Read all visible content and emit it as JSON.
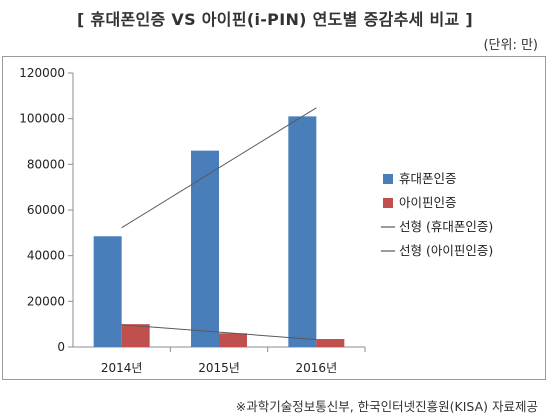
{
  "header": {
    "title": "[ 휴대폰인증 VS 아이핀(i-PIN) 연도별 증감추세 비교 ]",
    "unit": "(단위: 만)"
  },
  "footer": {
    "source": "※과학기술정보통신부, 한국인터넷진흥원(KISA) 자료제공"
  },
  "chart_data": {
    "type": "bar",
    "categories": [
      "2014년",
      "2015년",
      "2016년"
    ],
    "series": [
      {
        "name": "휴대폰인증",
        "values": [
          48500,
          86000,
          101000
        ],
        "color": "#4a7ebb"
      },
      {
        "name": "아이핀인증",
        "values": [
          10000,
          6000,
          3500
        ],
        "color": "#c0504d"
      }
    ],
    "trendlines": [
      {
        "name": "선형 (휴대폰인증)",
        "color": "#595959"
      },
      {
        "name": "선형 (아이핀인증)",
        "color": "#595959"
      }
    ],
    "ylim": [
      0,
      120000
    ],
    "yticks": [
      "0",
      "20000",
      "40000",
      "60000",
      "80000",
      "100000",
      "120000"
    ],
    "grid": false,
    "legend": "right",
    "title": "",
    "xlabel": "",
    "ylabel": ""
  }
}
